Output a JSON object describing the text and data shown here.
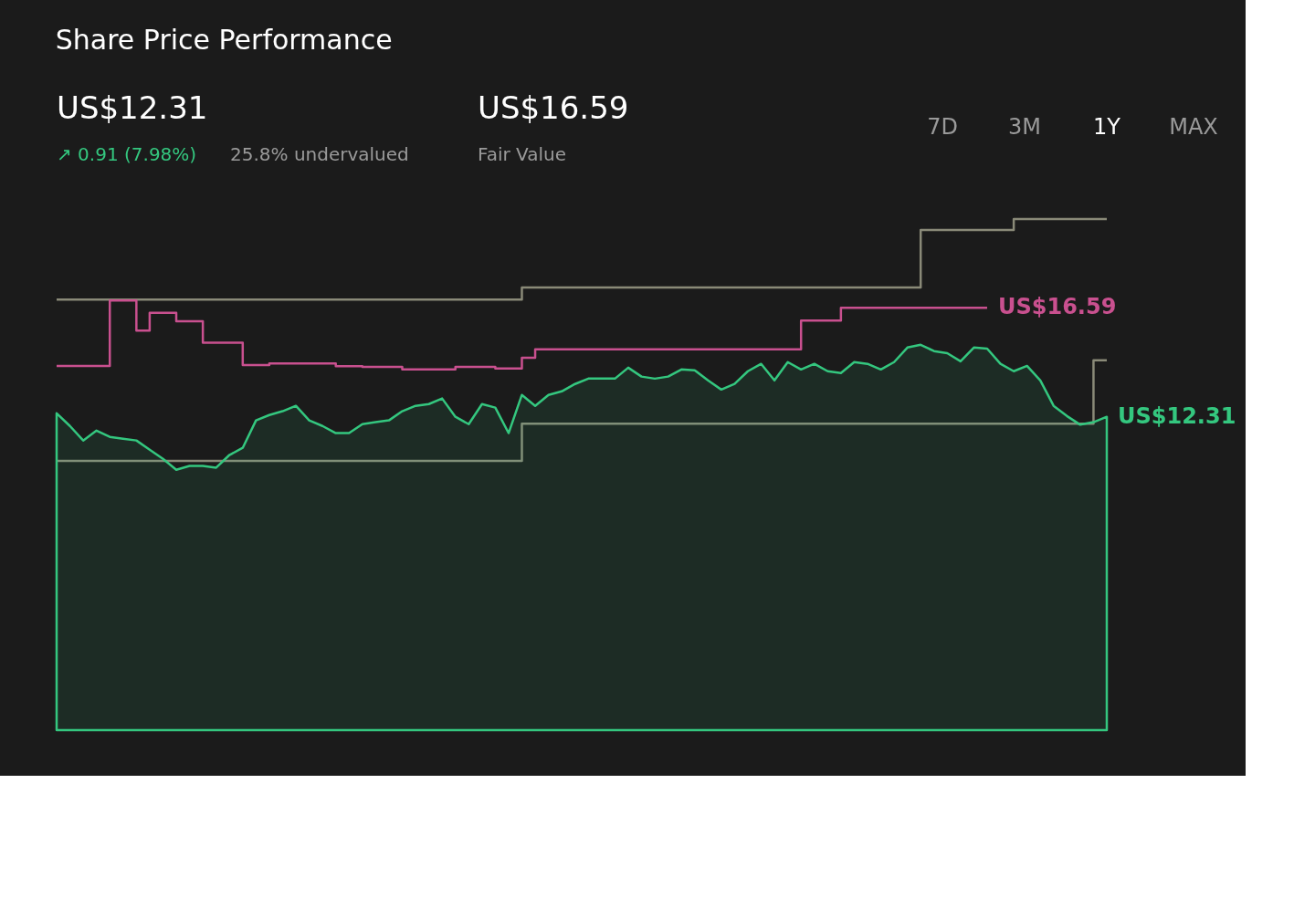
{
  "chart_data": {
    "type": "step",
    "title": "Share Price Performance",
    "annotations": [
      "US$12.31",
      "↗ 0.91 (7.98%)",
      "25.8% undervalued",
      "US$16.59",
      "7D",
      "3M",
      "1Y",
      "MAX"
    ],
    "categories": [
      null,
      null,
      null,
      null,
      null,
      null,
      null,
      null,
      null,
      null,
      null,
      null,
      null,
      null,
      null,
      null,
      null,
      null,
      null,
      null,
      null,
      null,
      null,
      null,
      null,
      null,
      null,
      null,
      null,
      null,
      null,
      null,
      null,
      null,
      null,
      null,
      null,
      null,
      null,
      null,
      null,
      null,
      null,
      null,
      null,
      null,
      null,
      null,
      null,
      null,
      null,
      null,
      null,
      null,
      null,
      null,
      null,
      null,
      null,
      null,
      null,
      null,
      null,
      null,
      null,
      null,
      null,
      null,
      null,
      null,
      null,
      null,
      null,
      null,
      null,
      null,
      null,
      null,
      null,
      null
    ],
    "tick_labels": false,
    "series": [
      {
        "color": "#8a8a78",
        "values": [
          16.92,
          16.92,
          16.92,
          16.92,
          16.92,
          16.92,
          16.92,
          16.92,
          16.92,
          16.92,
          16.92,
          16.92,
          16.92,
          16.92,
          16.92,
          16.92,
          16.92,
          16.92,
          16.92,
          16.92,
          16.92,
          16.92,
          16.92,
          16.92,
          16.92,
          16.92,
          16.92,
          16.92,
          16.92,
          16.92,
          16.92,
          16.92,
          16.92,
          16.92,
          16.92,
          17.39,
          17.39,
          17.39,
          17.39,
          17.39,
          17.39,
          17.39,
          17.39,
          17.39,
          17.39,
          17.39,
          17.39,
          17.39,
          17.39,
          17.39,
          17.39,
          17.39,
          17.39,
          17.39,
          17.39,
          17.39,
          17.39,
          17.39,
          17.39,
          17.39,
          17.39,
          17.39,
          17.39,
          17.39,
          17.39,
          19.65,
          19.65,
          19.65,
          19.65,
          19.65,
          19.65,
          19.65,
          20.08,
          20.08,
          20.08,
          20.08,
          20.08,
          20.08,
          20.08,
          20.08
        ]
      },
      {
        "color": "#8a8a78",
        "values": [
          10.58,
          10.58,
          10.58,
          10.58,
          10.58,
          10.58,
          10.58,
          10.58,
          10.58,
          10.58,
          10.58,
          10.58,
          10.58,
          10.58,
          10.58,
          10.58,
          10.58,
          10.58,
          10.58,
          10.58,
          10.58,
          10.58,
          10.58,
          10.58,
          10.58,
          10.58,
          10.58,
          10.58,
          10.58,
          10.58,
          10.58,
          10.58,
          10.58,
          10.58,
          10.58,
          12.04,
          12.04,
          12.04,
          12.04,
          12.04,
          12.04,
          12.04,
          12.04,
          12.04,
          12.04,
          12.04,
          12.04,
          12.04,
          12.04,
          12.04,
          12.04,
          12.04,
          12.04,
          12.04,
          12.04,
          12.04,
          12.04,
          12.04,
          12.04,
          12.04,
          12.04,
          12.04,
          12.04,
          12.04,
          12.04,
          12.04,
          12.04,
          12.04,
          12.04,
          12.04,
          12.04,
          12.04,
          12.04,
          12.04,
          12.04,
          12.04,
          12.04,
          12.04,
          14.53,
          14.53
        ]
      },
      {
        "name": "Fair Value",
        "color": "#c9508f",
        "values": [
          14.31,
          14.31,
          14.31,
          14.31,
          16.88,
          16.88,
          15.7,
          16.4,
          16.4,
          16.06,
          16.06,
          15.22,
          15.22,
          15.22,
          14.34,
          14.34,
          14.41,
          14.41,
          14.41,
          14.41,
          14.41,
          14.3,
          14.3,
          14.27,
          14.27,
          14.27,
          14.17,
          14.17,
          14.17,
          14.17,
          14.27,
          14.27,
          14.27,
          14.21,
          14.21,
          14.63,
          14.96,
          14.96,
          14.96,
          14.96,
          14.96,
          14.96,
          14.96,
          14.96,
          14.96,
          14.96,
          14.96,
          14.96,
          14.96,
          14.96,
          14.96,
          14.96,
          14.96,
          14.96,
          14.96,
          14.96,
          16.09,
          16.09,
          16.09,
          16.59,
          16.59,
          16.59,
          16.59,
          16.59,
          16.59,
          16.59,
          16.59,
          16.59,
          16.59,
          16.59,
          16.59,
          null,
          null,
          null,
          null,
          null,
          null,
          null,
          null,
          null
        ],
        "value_labels": [
          null,
          null,
          null,
          null,
          null,
          null,
          null,
          null,
          null,
          null,
          null,
          null,
          null,
          null,
          null,
          null,
          null,
          null,
          null,
          null,
          null,
          null,
          null,
          null,
          null,
          null,
          null,
          null,
          null,
          null,
          null,
          null,
          null,
          null,
          null,
          null,
          null,
          null,
          null,
          null,
          null,
          null,
          null,
          null,
          null,
          null,
          null,
          null,
          null,
          null,
          null,
          null,
          null,
          null,
          null,
          null,
          null,
          null,
          null,
          null,
          null,
          null,
          null,
          null,
          null,
          null,
          null,
          null,
          null,
          null,
          "US$16.59",
          null,
          null,
          null,
          null,
          null,
          null,
          null,
          null,
          null
        ]
      },
      {
        "type": "area",
        "color": "#34c77f",
        "values": [
          12.45,
          11.95,
          11.38,
          11.77,
          11.52,
          11.45,
          11.38,
          11.02,
          10.66,
          10.23,
          10.38,
          10.38,
          10.31,
          10.81,
          11.09,
          12.17,
          12.38,
          12.53,
          12.74,
          12.17,
          11.95,
          11.67,
          11.67,
          12.02,
          12.1,
          12.17,
          12.53,
          12.74,
          12.81,
          13.03,
          12.31,
          12.02,
          12.81,
          12.67,
          11.67,
          13.17,
          12.74,
          13.17,
          13.31,
          13.6,
          13.81,
          13.81,
          13.81,
          14.24,
          13.89,
          13.81,
          13.89,
          14.17,
          14.14,
          13.74,
          13.38,
          13.6,
          14.1,
          14.39,
          13.74,
          14.46,
          14.17,
          14.39,
          14.1,
          14.03,
          14.46,
          14.39,
          14.17,
          14.46,
          15.03,
          15.14,
          14.89,
          14.81,
          14.49,
          15.03,
          14.99,
          14.39,
          14.1,
          14.31,
          13.74,
          12.74,
          12.34,
          12.0,
          12.1,
          12.31
        ],
        "value_labels": [
          null,
          null,
          null,
          null,
          null,
          null,
          null,
          null,
          null,
          null,
          null,
          null,
          null,
          null,
          null,
          null,
          null,
          null,
          null,
          null,
          null,
          null,
          null,
          null,
          null,
          null,
          null,
          null,
          null,
          null,
          null,
          null,
          null,
          null,
          null,
          null,
          null,
          null,
          null,
          null,
          null,
          null,
          null,
          null,
          null,
          null,
          null,
          null,
          null,
          null,
          null,
          null,
          null,
          null,
          null,
          null,
          null,
          null,
          null,
          null,
          null,
          null,
          null,
          null,
          null,
          null,
          null,
          null,
          null,
          null,
          null,
          null,
          null,
          null,
          null,
          null,
          null,
          null,
          null,
          "US$12.31"
        ]
      }
    ]
  }
}
